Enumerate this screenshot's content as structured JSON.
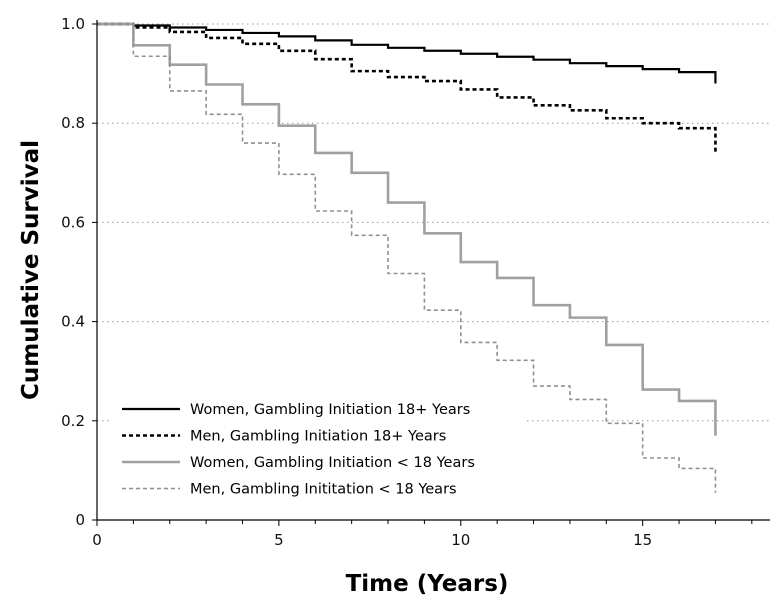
{
  "chart_data": {
    "type": "line",
    "step": true,
    "title": "",
    "xlabel": "Time (Years)",
    "ylabel": "Cumulative Survival",
    "xlim": [
      0,
      18.5
    ],
    "ylim": [
      0,
      1.0
    ],
    "xticks": [
      0,
      5,
      10,
      15
    ],
    "xtick_labels": [
      "0",
      "5",
      "10",
      "15"
    ],
    "yticks": [
      0,
      0.2,
      0.4,
      0.6,
      0.8,
      1.0
    ],
    "ytick_labels": [
      "0",
      "0.2",
      "0.4",
      "0.6",
      "0.8",
      "1.0"
    ],
    "grid": "horizontal dotted",
    "legend_position": "bottom-left",
    "series": [
      {
        "name": "Women, Gambling Initiation 18+ Years",
        "color": "#000000",
        "style": "solid",
        "x": [
          0,
          1,
          2,
          3,
          4,
          5,
          6,
          7,
          8,
          9,
          10,
          11,
          12,
          13,
          14,
          15,
          16,
          17
        ],
        "y": [
          1.0,
          0.997,
          0.993,
          0.988,
          0.982,
          0.975,
          0.967,
          0.958,
          0.952,
          0.946,
          0.94,
          0.934,
          0.928,
          0.921,
          0.915,
          0.909,
          0.903,
          0.88
        ]
      },
      {
        "name": "Men, Gambling Initiation 18+ Years",
        "color": "#000000",
        "style": "dashed",
        "x": [
          0,
          1,
          2,
          3,
          4,
          5,
          6,
          7,
          8,
          9,
          10,
          11,
          12,
          13,
          14,
          15,
          16,
          17
        ],
        "y": [
          1.0,
          0.993,
          0.984,
          0.972,
          0.96,
          0.946,
          0.929,
          0.905,
          0.893,
          0.885,
          0.868,
          0.852,
          0.836,
          0.826,
          0.81,
          0.8,
          0.79,
          0.74
        ]
      },
      {
        "name": "Women, Gambling Initiation < 18 Years",
        "color": "#a0a0a0",
        "style": "solid",
        "x": [
          0,
          1,
          2,
          3,
          4,
          5,
          6,
          7,
          8,
          9,
          10,
          11,
          12,
          13,
          14,
          15,
          16,
          17
        ],
        "y": [
          1.0,
          0.957,
          0.918,
          0.878,
          0.838,
          0.795,
          0.74,
          0.7,
          0.64,
          0.578,
          0.52,
          0.488,
          0.433,
          0.408,
          0.353,
          0.263,
          0.24,
          0.17
        ]
      },
      {
        "name": "Men, Gambling Inititation < 18 Years",
        "color": "#909090",
        "style": "dashed",
        "x": [
          0,
          1,
          2,
          3,
          4,
          5,
          6,
          7,
          8,
          9,
          10,
          11,
          12,
          13,
          14,
          15,
          16,
          17
        ],
        "y": [
          1.0,
          0.935,
          0.865,
          0.818,
          0.76,
          0.697,
          0.623,
          0.574,
          0.497,
          0.423,
          0.358,
          0.322,
          0.27,
          0.243,
          0.195,
          0.125,
          0.104,
          0.055
        ]
      }
    ]
  }
}
